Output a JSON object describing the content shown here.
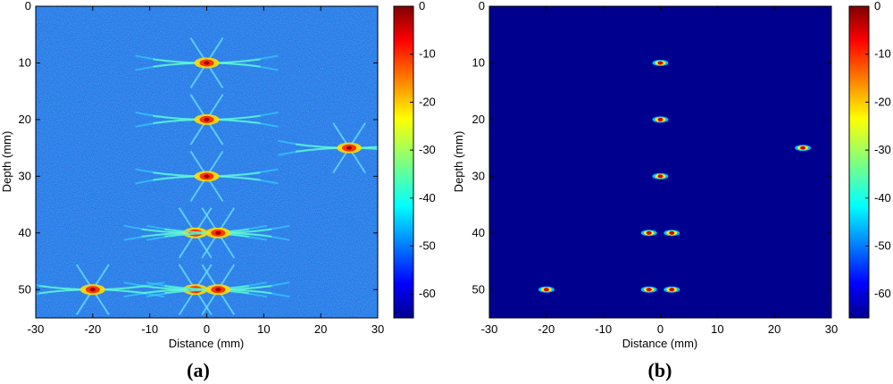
{
  "chart_data": [
    {
      "type": "heatmap",
      "panel_label": "(a)",
      "xlabel": "Distance (mm)",
      "ylabel": "Depth (mm)",
      "xlim": [
        -30,
        30
      ],
      "ylim": [
        0,
        55
      ],
      "y_inverted": true,
      "xticks": [
        -30,
        -20,
        -10,
        0,
        10,
        20,
        30
      ],
      "yticks": [
        0,
        10,
        20,
        30,
        40,
        50
      ],
      "colorbar": {
        "range": [
          -65,
          0
        ],
        "ticks": [
          0,
          -10,
          -20,
          -30,
          -40,
          -50,
          -60
        ],
        "colormap": "jet"
      },
      "background_level": -55,
      "noise": "speckled",
      "point_targets": [
        {
          "x": 0,
          "y": 10
        },
        {
          "x": 0,
          "y": 20
        },
        {
          "x": 0,
          "y": 30
        },
        {
          "x": -2,
          "y": 40
        },
        {
          "x": 2,
          "y": 40
        },
        {
          "x": -2,
          "y": 50
        },
        {
          "x": 2,
          "y": 50
        },
        {
          "x": 25,
          "y": 25
        },
        {
          "x": -20,
          "y": 50
        }
      ]
    },
    {
      "type": "heatmap",
      "panel_label": "(b)",
      "xlabel": "Distance (mm)",
      "ylabel": "Depth (mm)",
      "xlim": [
        -30,
        30
      ],
      "ylim": [
        0,
        55
      ],
      "y_inverted": true,
      "xticks": [
        -30,
        -20,
        -10,
        0,
        10,
        20,
        30
      ],
      "yticks": [
        0,
        10,
        20,
        30,
        40,
        50
      ],
      "colorbar": {
        "range": [
          -65,
          0
        ],
        "ticks": [
          0,
          -10,
          -20,
          -30,
          -40,
          -50,
          -60
        ],
        "colormap": "jet"
      },
      "background_level": -65,
      "noise": "none",
      "point_targets": [
        {
          "x": 0,
          "y": 10
        },
        {
          "x": 0,
          "y": 20
        },
        {
          "x": 0,
          "y": 30
        },
        {
          "x": -2,
          "y": 40
        },
        {
          "x": 2,
          "y": 40
        },
        {
          "x": -2,
          "y": 50
        },
        {
          "x": 2,
          "y": 50
        },
        {
          "x": 25,
          "y": 25
        },
        {
          "x": -20,
          "y": 50
        }
      ]
    }
  ]
}
